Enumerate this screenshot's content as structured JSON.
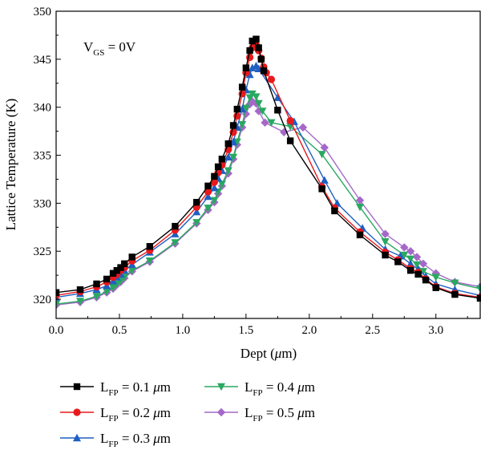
{
  "chart_data": {
    "type": "line",
    "title": "",
    "xlabel": {
      "base": "Dept (",
      "mu": "μ",
      "unit": "m)"
    },
    "ylabel": "Lattice Temperature (K)",
    "xlim": [
      0,
      3.35
    ],
    "ylim": [
      318,
      350
    ],
    "xticks": [
      "0.0",
      "0.5",
      "1.0",
      "1.5",
      "2.0",
      "2.5",
      "3.0"
    ],
    "xtick_values": [
      0,
      0.5,
      1.0,
      1.5,
      2.0,
      2.5,
      3.0
    ],
    "yticks": [
      "320",
      "325",
      "330",
      "335",
      "340",
      "345",
      "350"
    ],
    "ytick_values": [
      320,
      325,
      330,
      335,
      340,
      345,
      350
    ],
    "grid": false,
    "legend_position": "bottom",
    "annotation": {
      "main": "V",
      "sub": "GS",
      "rest": " = 0V"
    },
    "series": [
      {
        "label": {
          "main": "L",
          "sub": "FP",
          "rest": " = 0.1 ",
          "mu": "μ",
          "unit": "m"
        },
        "color": "#000000",
        "marker": "square",
        "x": [
          0,
          0.19,
          0.32,
          0.4,
          0.45,
          0.48,
          0.51,
          0.54,
          0.6,
          0.74,
          0.94,
          1.11,
          1.2,
          1.25,
          1.28,
          1.31,
          1.36,
          1.4,
          1.43,
          1.47,
          1.5,
          1.53,
          1.55,
          1.58,
          1.6,
          1.62,
          1.64,
          1.75,
          1.85,
          2.1,
          2.2,
          2.4,
          2.6,
          2.7,
          2.8,
          2.86,
          2.92,
          3.0,
          3.15,
          3.35
        ],
        "y": [
          320.7,
          321.0,
          321.6,
          322.1,
          322.7,
          323.0,
          323.3,
          323.7,
          324.4,
          325.5,
          327.6,
          330.1,
          331.8,
          332.8,
          333.8,
          334.6,
          336.2,
          338.1,
          339.8,
          342.1,
          344.1,
          345.9,
          346.9,
          347.1,
          346.2,
          345.0,
          343.8,
          339.7,
          336.5,
          331.5,
          329.2,
          326.7,
          324.6,
          323.9,
          323.0,
          322.6,
          322.0,
          321.2,
          320.5,
          320.1
        ]
      },
      {
        "label": {
          "main": "L",
          "sub": "FP",
          "rest": " = 0.2 ",
          "mu": "μ",
          "unit": "m"
        },
        "color": "#e8191c",
        "marker": "circle",
        "x": [
          0,
          0.19,
          0.32,
          0.4,
          0.45,
          0.48,
          0.51,
          0.54,
          0.6,
          0.74,
          0.94,
          1.11,
          1.2,
          1.25,
          1.28,
          1.31,
          1.36,
          1.4,
          1.43,
          1.47,
          1.5,
          1.53,
          1.55,
          1.58,
          1.6,
          1.62,
          1.64,
          1.66,
          1.7,
          1.85,
          2.1,
          2.2,
          2.4,
          2.6,
          2.7,
          2.8,
          2.86,
          2.92,
          3.0,
          3.15,
          3.35
        ],
        "y": [
          320.4,
          320.8,
          321.3,
          321.8,
          322.3,
          322.6,
          323.0,
          323.3,
          324.0,
          325.1,
          327.2,
          329.6,
          331.2,
          332.2,
          333.2,
          334.0,
          335.6,
          337.4,
          339.1,
          341.4,
          343.6,
          345.2,
          346.2,
          346.5,
          345.9,
          345.1,
          344.2,
          343.6,
          342.9,
          338.6,
          331.7,
          329.5,
          327.0,
          324.9,
          324.1,
          323.2,
          322.8,
          322.1,
          321.3,
          320.6,
          320.2
        ]
      },
      {
        "label": {
          "main": "L",
          "sub": "FP",
          "rest": " = 0.3 ",
          "mu": "μ",
          "unit": "m"
        },
        "color": "#1f5fc2",
        "marker": "triangle-up",
        "x": [
          0,
          0.19,
          0.32,
          0.4,
          0.45,
          0.48,
          0.51,
          0.54,
          0.6,
          0.74,
          0.94,
          1.11,
          1.2,
          1.25,
          1.28,
          1.31,
          1.36,
          1.4,
          1.43,
          1.47,
          1.5,
          1.53,
          1.55,
          1.58,
          1.6,
          1.75,
          1.88,
          2.12,
          2.22,
          2.42,
          2.6,
          2.72,
          2.8,
          2.86,
          2.92,
          3.0,
          3.15,
          3.35
        ],
        "y": [
          320.2,
          320.6,
          321.0,
          321.4,
          321.9,
          322.3,
          322.6,
          323.0,
          323.6,
          324.9,
          326.8,
          329.1,
          330.7,
          331.6,
          332.6,
          333.4,
          334.8,
          336.4,
          337.9,
          339.8,
          341.8,
          343.4,
          344.1,
          344.3,
          344.0,
          341.0,
          338.5,
          332.4,
          330.0,
          327.4,
          325.2,
          324.5,
          323.7,
          323.1,
          322.4,
          321.6,
          321.0,
          320.4
        ]
      },
      {
        "label": {
          "main": "L",
          "sub": "FP",
          "rest": " = 0.4 ",
          "mu": "μ",
          "unit": "m"
        },
        "color": "#2aa860",
        "marker": "triangle-down",
        "x": [
          0,
          0.19,
          0.32,
          0.4,
          0.45,
          0.48,
          0.51,
          0.54,
          0.6,
          0.74,
          0.94,
          1.11,
          1.2,
          1.25,
          1.28,
          1.31,
          1.36,
          1.4,
          1.43,
          1.47,
          1.5,
          1.53,
          1.55,
          1.58,
          1.6,
          1.63,
          1.7,
          1.85,
          2.1,
          2.4,
          2.6,
          2.75,
          2.8,
          2.85,
          2.9,
          3.0,
          3.15,
          3.35
        ],
        "y": [
          319.5,
          319.8,
          320.3,
          320.8,
          321.2,
          321.6,
          321.9,
          322.3,
          323.0,
          324.0,
          325.9,
          328.0,
          329.5,
          330.3,
          331.2,
          332.0,
          333.4,
          334.8,
          336.4,
          338.2,
          339.9,
          341.0,
          341.4,
          341.1,
          340.4,
          339.6,
          338.4,
          338.0,
          335.1,
          329.6,
          326.0,
          324.6,
          324.2,
          323.6,
          322.9,
          322.3,
          321.7,
          321.1
        ]
      },
      {
        "label": {
          "main": "L",
          "sub": "FP",
          "rest": " = 0.5 ",
          "mu": "μ",
          "unit": "m"
        },
        "color": "#a568c9",
        "marker": "diamond",
        "x": [
          0,
          0.19,
          0.32,
          0.4,
          0.45,
          0.48,
          0.51,
          0.54,
          0.6,
          0.74,
          0.94,
          1.11,
          1.2,
          1.25,
          1.28,
          1.31,
          1.36,
          1.4,
          1.43,
          1.47,
          1.5,
          1.53,
          1.55,
          1.58,
          1.6,
          1.65,
          1.8,
          1.95,
          2.12,
          2.4,
          2.6,
          2.75,
          2.8,
          2.85,
          2.9,
          3.0,
          3.15,
          3.35
        ],
        "y": [
          319.4,
          319.7,
          320.2,
          320.7,
          321.1,
          321.5,
          321.8,
          322.2,
          322.9,
          323.9,
          325.8,
          327.9,
          329.3,
          330.1,
          331.0,
          331.8,
          333.1,
          334.6,
          336.1,
          337.9,
          339.3,
          340.3,
          340.6,
          340.4,
          339.6,
          338.4,
          337.4,
          337.9,
          335.8,
          330.3,
          326.8,
          325.4,
          325.0,
          324.4,
          323.7,
          322.7,
          321.8,
          321.3
        ]
      }
    ]
  }
}
